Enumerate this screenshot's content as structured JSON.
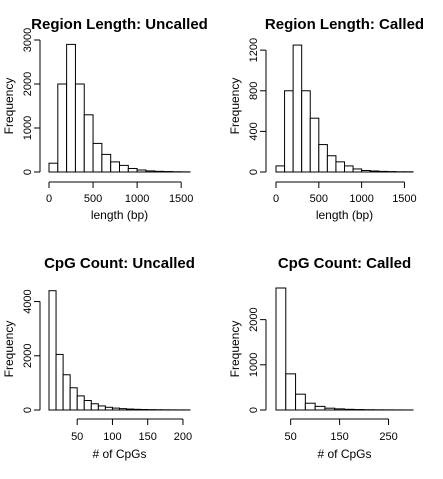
{
  "chart_data": [
    {
      "type": "bar",
      "title": "Region Length: Uncalled",
      "xlabel": "length (bp)",
      "ylabel": "Frequency",
      "x_bins": [
        0,
        100,
        200,
        300,
        400,
        500,
        600,
        700,
        800,
        900,
        1000,
        1100,
        1200,
        1300,
        1400,
        1500
      ],
      "bin_width": 100,
      "values": [
        200,
        2000,
        2900,
        2000,
        1300,
        650,
        400,
        230,
        150,
        80,
        45,
        25,
        15,
        10,
        5,
        3
      ],
      "xlim": [
        0,
        1600
      ],
      "ylim": [
        0,
        3000
      ],
      "xticks": [
        0,
        500,
        1000,
        1500
      ],
      "yticks": [
        0,
        1000,
        2000,
        3000
      ]
    },
    {
      "type": "bar",
      "title": "Region Length: Called",
      "xlabel": "length (bp)",
      "ylabel": "Frequency",
      "x_bins": [
        0,
        100,
        200,
        300,
        400,
        500,
        600,
        700,
        800,
        900,
        1000,
        1100,
        1200,
        1300,
        1400,
        1500
      ],
      "bin_width": 100,
      "values": [
        60,
        800,
        1250,
        800,
        530,
        270,
        160,
        100,
        60,
        30,
        15,
        10,
        6,
        4,
        2,
        2
      ],
      "xlim": [
        0,
        1600
      ],
      "ylim": [
        0,
        1300
      ],
      "xticks": [
        0,
        500,
        1000,
        1500
      ],
      "yticks": [
        0,
        400,
        800,
        1200
      ]
    },
    {
      "type": "bar",
      "title": "CpG Count: Uncalled",
      "xlabel": "# of CpGs",
      "ylabel": "Frequency",
      "x_bins": [
        10,
        20,
        30,
        40,
        50,
        60,
        70,
        80,
        90,
        100,
        110,
        120,
        130,
        140,
        150,
        160,
        170,
        180,
        190,
        200
      ],
      "bin_width": 10,
      "values": [
        4400,
        2050,
        1300,
        820,
        520,
        350,
        230,
        150,
        100,
        70,
        50,
        35,
        25,
        18,
        13,
        10,
        7,
        5,
        4,
        3
      ],
      "xlim": [
        10,
        210
      ],
      "ylim": [
        0,
        4500
      ],
      "xticks": [
        50,
        100,
        150,
        200
      ],
      "yticks": [
        0,
        2000,
        4000
      ]
    },
    {
      "type": "bar",
      "title": "CpG Count: Called",
      "xlabel": "# of CpGs",
      "ylabel": "Frequency",
      "x_bins": [
        20,
        40,
        60,
        80,
        100,
        120,
        140,
        160,
        180,
        200,
        220,
        240,
        260,
        280
      ],
      "bin_width": 20,
      "values": [
        2700,
        800,
        350,
        150,
        80,
        40,
        25,
        15,
        10,
        6,
        4,
        3,
        2,
        1
      ],
      "xlim": [
        20,
        300
      ],
      "ylim": [
        0,
        2700
      ],
      "xticks": [
        50,
        150,
        250
      ],
      "yticks": [
        0,
        1000,
        2000
      ]
    }
  ]
}
